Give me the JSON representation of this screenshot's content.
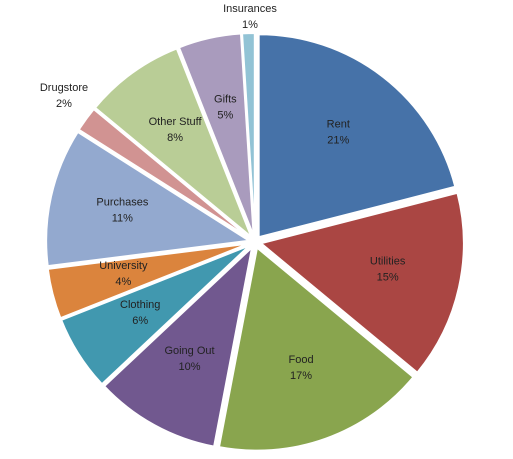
{
  "chart_data": {
    "type": "pie",
    "title": "",
    "slices": [
      {
        "label": "Rent",
        "value": 21,
        "display": "21%",
        "color": "#4672A8"
      },
      {
        "label": "Utilities",
        "value": 15,
        "display": "15%",
        "color": "#AA4643"
      },
      {
        "label": "Food",
        "value": 17,
        "display": "17%",
        "color": "#89A54E"
      },
      {
        "label": "Going Out",
        "value": 10,
        "display": "10%",
        "color": "#71588F"
      },
      {
        "label": "Clothing",
        "value": 6,
        "display": "6%",
        "color": "#4198AF"
      },
      {
        "label": "University",
        "value": 4,
        "display": "4%",
        "color": "#DB843D"
      },
      {
        "label": "Purchases",
        "value": 11,
        "display": "11%",
        "color": "#93A9CF"
      },
      {
        "label": "Drugstore",
        "value": 2,
        "display": "2%",
        "color": "#D19392"
      },
      {
        "label": "Other Stuff",
        "value": 8,
        "display": "8%",
        "color": "#B9CD96"
      },
      {
        "label": "Gifts",
        "value": 5,
        "display": "5%",
        "color": "#A99BBD"
      },
      {
        "label": "Insurances",
        "value": 1,
        "display": "1%",
        "color": "#92C3D5"
      }
    ]
  }
}
